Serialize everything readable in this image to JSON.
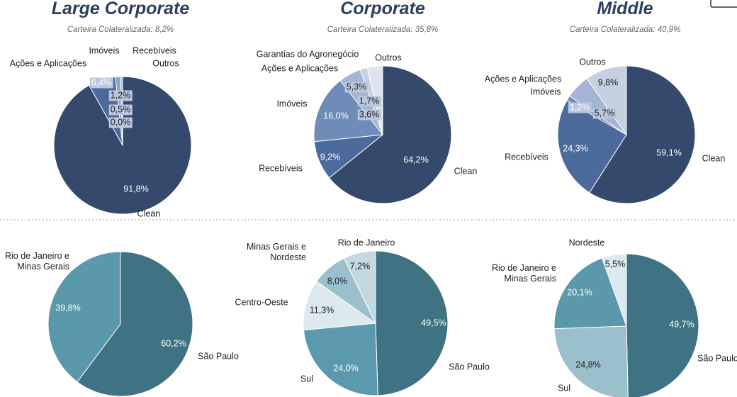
{
  "chart_data": [
    {
      "type": "pie",
      "title": "Large Corporate",
      "subtitle": "Carteira Colateralizada: 8,2%",
      "categories": [
        "Clean",
        "Ações e Aplicações",
        "Imóveis",
        "Recebíveis",
        "Outros"
      ],
      "values": [
        91.8,
        6.4,
        1.2,
        0.5,
        0.0
      ],
      "value_labels": [
        "91,8%",
        "6,4%",
        "1,2%",
        "0,5%",
        "0,0%"
      ],
      "colors": [
        "#34496b",
        "#4d6a9c",
        "#8fa3c6",
        "#b5c3da",
        "#d9e0ec"
      ]
    },
    {
      "type": "pie",
      "title": "Corporate",
      "subtitle": "Carteira Colateralizada: 35,8%",
      "categories": [
        "Clean",
        "Recebíveis",
        "Imóveis",
        "Ações e Aplicações",
        "Garantias do Agronegócio",
        "Outros"
      ],
      "values": [
        64.2,
        9.2,
        16.0,
        5.3,
        1.7,
        3.6
      ],
      "value_labels": [
        "64,2%",
        "9,2%",
        "16,0%",
        "5,3%",
        "1,7%",
        "3,6%"
      ],
      "colors": [
        "#34496b",
        "#4d6a9c",
        "#6f8bb8",
        "#a3b5d3",
        "#c5d1e4",
        "#dde4ef"
      ]
    },
    {
      "type": "pie",
      "title": "Middle",
      "subtitle": "Carteira Colateralizada: 40,9%",
      "categories": [
        "Clean",
        "Recebíveis",
        "Imóveis",
        "Ações e Aplicações",
        "Outros"
      ],
      "values": [
        59.1,
        24.3,
        1.2,
        5.7,
        9.8
      ],
      "value_labels": [
        "59,1%",
        "24,3%",
        "1,2%",
        "5,7%",
        "9,8%"
      ],
      "colors": [
        "#34496b",
        "#4d6a9c",
        "#6f8bb8",
        "#a3b5d3",
        "#c5d0e2"
      ]
    },
    {
      "type": "pie",
      "categories": [
        "São Paulo",
        "Rio de Janeiro e Minas Gerais"
      ],
      "values": [
        60.2,
        39.8
      ],
      "value_labels": [
        "60,2%",
        "39,8%"
      ],
      "colors": [
        "#3f7282",
        "#5a98ab"
      ]
    },
    {
      "type": "pie",
      "categories": [
        "São Paulo",
        "Sul",
        "Centro-Oeste",
        "Minas Gerais e Nordeste",
        "Rio de Janeiro"
      ],
      "values": [
        49.5,
        24.0,
        11.3,
        8.0,
        7.2
      ],
      "value_labels": [
        "49,5%",
        "24,0%",
        "11,3%",
        "8,0%",
        "7,2%"
      ],
      "colors": [
        "#3f7282",
        "#5b9aae",
        "#dce9ee",
        "#9ac0ce",
        "#c3d8e0"
      ]
    },
    {
      "type": "pie",
      "categories": [
        "São Paulo",
        "Sul",
        "Rio de Janeiro e Minas Gerais",
        "Nordeste"
      ],
      "values": [
        49.7,
        24.8,
        20.1,
        5.5
      ],
      "value_labels": [
        "49,7%",
        "24,8%",
        "20,1%",
        "5,5%"
      ],
      "colors": [
        "#3f7282",
        "#9cbfcc",
        "#5a98ab",
        "#dde9ee"
      ]
    }
  ]
}
